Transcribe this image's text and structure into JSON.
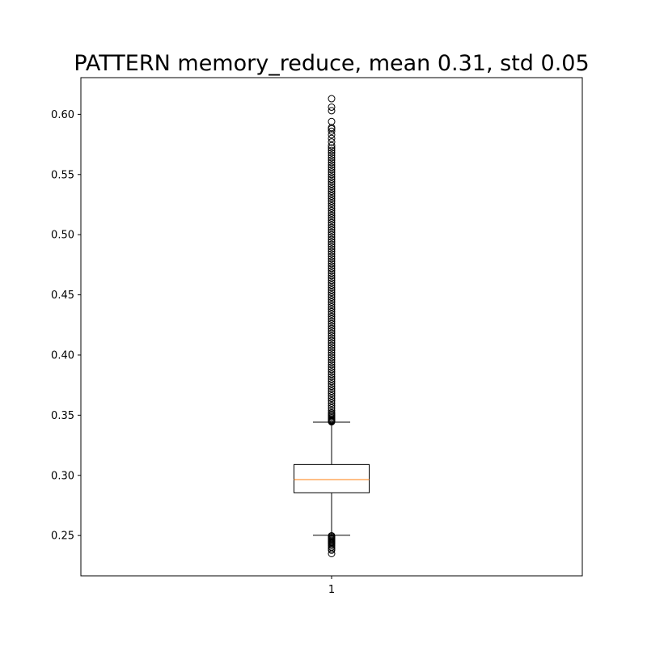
{
  "chart_data": {
    "type": "box",
    "title": "PATTERN memory_reduce, mean 0.31, std 0.05",
    "xlabel": "",
    "ylabel": "",
    "ylim": [
      0.2165,
      0.6305
    ],
    "yticks": [
      "0.25",
      "0.30",
      "0.35",
      "0.40",
      "0.45",
      "0.50",
      "0.55",
      "0.60"
    ],
    "xticks": [
      "1"
    ],
    "grid": false,
    "legend": "none",
    "box": {
      "category": "1",
      "median": 0.2965,
      "q1": 0.2855,
      "q3": 0.309,
      "whisker_low": 0.2502,
      "whisker_high": 0.3442
    },
    "outliers_high": [
      0.3445,
      0.345,
      0.3455,
      0.346,
      0.347,
      0.348,
      0.349,
      0.35,
      0.351,
      0.352,
      0.354,
      0.356,
      0.358,
      0.36,
      0.362,
      0.364,
      0.366,
      0.368,
      0.37,
      0.372,
      0.374,
      0.376,
      0.378,
      0.38,
      0.382,
      0.384,
      0.386,
      0.388,
      0.39,
      0.392,
      0.394,
      0.396,
      0.398,
      0.4,
      0.402,
      0.404,
      0.406,
      0.408,
      0.41,
      0.412,
      0.414,
      0.416,
      0.418,
      0.42,
      0.422,
      0.424,
      0.426,
      0.428,
      0.43,
      0.432,
      0.434,
      0.436,
      0.438,
      0.44,
      0.442,
      0.444,
      0.446,
      0.448,
      0.45,
      0.452,
      0.454,
      0.456,
      0.458,
      0.46,
      0.462,
      0.464,
      0.466,
      0.468,
      0.47,
      0.472,
      0.474,
      0.476,
      0.478,
      0.48,
      0.482,
      0.484,
      0.486,
      0.488,
      0.49,
      0.492,
      0.494,
      0.496,
      0.498,
      0.5,
      0.502,
      0.504,
      0.506,
      0.508,
      0.51,
      0.512,
      0.514,
      0.516,
      0.518,
      0.52,
      0.522,
      0.524,
      0.526,
      0.528,
      0.53,
      0.532,
      0.534,
      0.536,
      0.538,
      0.54,
      0.542,
      0.544,
      0.546,
      0.548,
      0.55,
      0.552,
      0.554,
      0.556,
      0.558,
      0.56,
      0.562,
      0.564,
      0.566,
      0.568,
      0.57,
      0.572,
      0.574,
      0.577,
      0.58,
      0.583,
      0.586,
      0.588,
      0.589,
      0.594,
      0.603,
      0.606,
      0.613
    ],
    "outliers_low": [
      0.2498,
      0.249,
      0.2482,
      0.2475,
      0.2468,
      0.246,
      0.2452,
      0.2445,
      0.2438,
      0.243,
      0.2418,
      0.2405,
      0.239,
      0.2378,
      0.235
    ],
    "colors": {
      "median": "#ff7f0e",
      "box": "#000000",
      "flier": "#000000",
      "background": "#ffffff"
    }
  }
}
